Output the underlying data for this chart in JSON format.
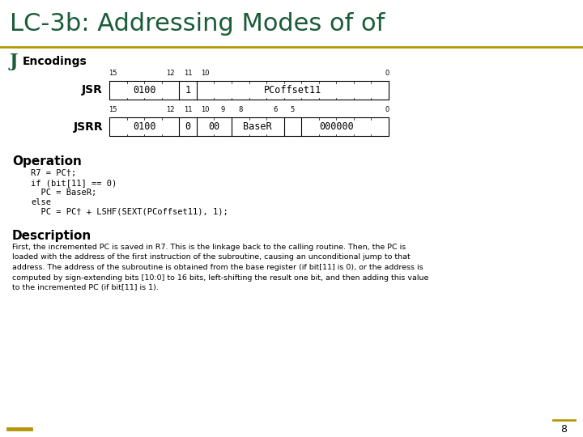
{
  "title": "LC-3b: Addressing Modes of of",
  "title_color": "#1a5c38",
  "title_fontsize": 22,
  "bg_color": "#ffffff",
  "gold_line_color": "#b8960c",
  "section_j_color": "#1a5c38",
  "page_num": "8",
  "encodings_label": "Encodings",
  "operation_label": "Operation",
  "description_label": "Description",
  "jsr_label": "JSR",
  "jsrr_label": "JSRR",
  "operation_lines": [
    "R7 = PC†;",
    "if (bit[11] == 0)",
    "  PC = BaseR;",
    "else",
    "  PC = PC† + LSHF(SEXT(PCoffset11), 1);"
  ],
  "description_text": "First, the incremented PC is saved in R7. This is the linkage back to the calling routine. Then, the PC is\nloaded with the address of the first instruction of the subroutine, causing an unconditional jump to that\naddress. The address of the subroutine is obtained from the base register (if bit[11] is 0), or the address is\ncomputed by sign-extending bits [10:0] to 16 bits, left-shifting the result one bit, and then adding this value\nto the incremented PC (if bit[11] is 1)."
}
